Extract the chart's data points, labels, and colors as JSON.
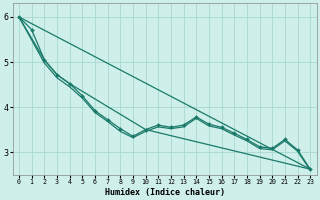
{
  "background_color": "#cff0ea",
  "grid_color": "#a8d8d0",
  "line_color": "#1a7a6a",
  "xlabel": "Humidex (Indice chaleur)",
  "xlim": [
    -0.5,
    23.5
  ],
  "ylim": [
    2.5,
    6.3
  ],
  "yticks": [
    3,
    4,
    5,
    6
  ],
  "xticks": [
    0,
    1,
    2,
    3,
    4,
    5,
    6,
    7,
    8,
    9,
    10,
    11,
    12,
    13,
    14,
    15,
    16,
    17,
    18,
    19,
    20,
    21,
    22,
    23
  ],
  "line_with_markers": {
    "x": [
      0,
      1,
      2,
      3,
      4,
      5,
      6,
      7,
      8,
      9,
      10,
      11,
      12,
      13,
      14,
      15,
      16,
      17,
      18,
      19,
      20,
      21,
      22,
      23
    ],
    "y": [
      6.0,
      5.72,
      5.05,
      4.72,
      4.52,
      4.25,
      3.92,
      3.72,
      3.52,
      3.35,
      3.5,
      3.6,
      3.55,
      3.6,
      3.78,
      3.62,
      3.55,
      3.42,
      3.28,
      3.12,
      3.08,
      3.28,
      3.05,
      2.62
    ]
  },
  "line_straight1": {
    "x": [
      0,
      1,
      23
    ],
    "y": [
      6.0,
      5.72,
      2.62
    ]
  },
  "line_upper_envelope": {
    "x": [
      0,
      2,
      3,
      4,
      10,
      23
    ],
    "y": [
      6.0,
      5.05,
      4.72,
      4.52,
      3.5,
      2.62
    ]
  },
  "line_lower1": {
    "x": [
      0,
      2,
      3,
      4,
      5,
      6,
      7,
      8,
      9,
      10,
      11,
      12,
      13,
      14,
      15,
      16,
      17,
      18,
      19,
      20,
      21,
      22,
      23
    ],
    "y": [
      6.0,
      4.98,
      4.65,
      4.45,
      4.2,
      3.88,
      3.68,
      3.46,
      3.32,
      3.46,
      3.56,
      3.52,
      3.56,
      3.75,
      3.58,
      3.52,
      3.38,
      3.25,
      3.08,
      3.05,
      3.25,
      3.02,
      2.6
    ]
  },
  "line_lower2": {
    "x": [
      0,
      23
    ],
    "y": [
      6.0,
      2.62
    ]
  }
}
